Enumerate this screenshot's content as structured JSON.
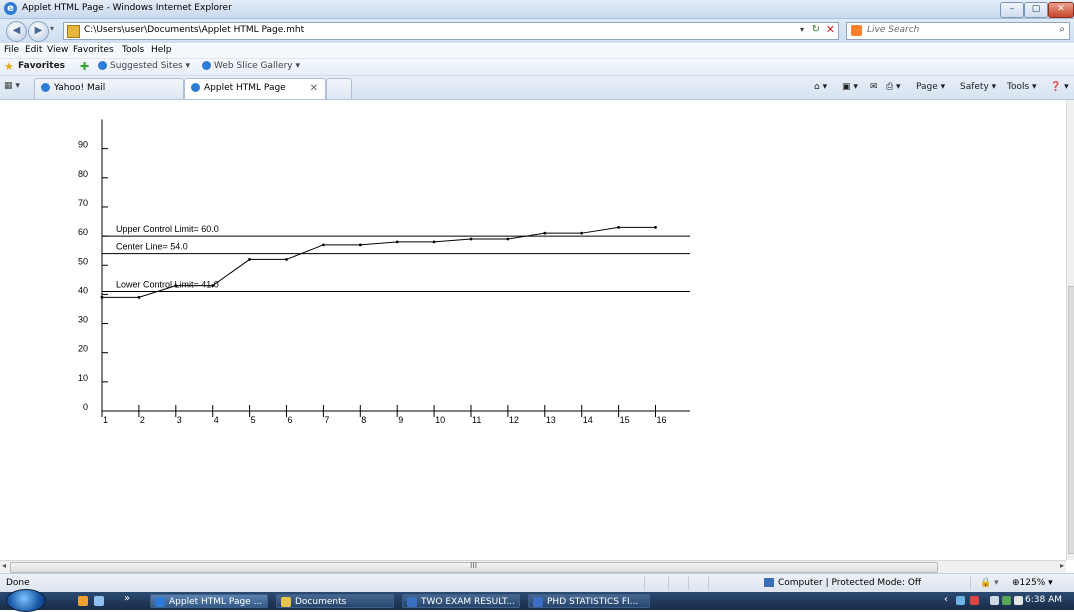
{
  "window": {
    "title": "Applet HTML Page - Windows Internet Explorer",
    "controls": {
      "minimize": "–",
      "maximize": "▢",
      "close": "✕"
    }
  },
  "address_bar": {
    "url": "C:\\Users\\user\\Documents\\Applet HTML Page.mht",
    "back_icon": "◀",
    "forward_icon": "▶",
    "refresh_icon": "↻",
    "stop_icon": "✕",
    "dropdown_icon": "▾",
    "search_placeholder": "Live Search",
    "search_icon": "⌕"
  },
  "menu": [
    "File",
    "Edit",
    "View",
    "Favorites",
    "Tools",
    "Help"
  ],
  "favorites_bar": {
    "favorites_label": "Favorites",
    "items": [
      "Suggested Sites ▾",
      "Web Slice Gallery ▾"
    ]
  },
  "tabs": {
    "quick_tabs": "▦ ▾",
    "items": [
      {
        "label": "Yahoo! Mail"
      },
      {
        "label": "Applet HTML Page",
        "close": "✕"
      }
    ]
  },
  "command_bar": [
    "⌂ ▾",
    "▣ ▾",
    "✉",
    "⎙ ▾",
    "Page ▾",
    "Safety ▾",
    "Tools ▾",
    "❓ ▾"
  ],
  "chart_data": {
    "type": "line",
    "x": [
      1,
      2,
      3,
      4,
      5,
      6,
      7,
      8,
      9,
      10,
      11,
      12,
      13,
      14,
      15,
      16
    ],
    "series": [
      {
        "values": [
          39,
          39,
          43,
          43,
          52,
          52,
          57,
          57,
          58,
          58,
          59,
          59,
          61,
          61,
          63,
          63
        ]
      }
    ],
    "x_ticks": [
      "1",
      "2",
      "3",
      "4",
      "5",
      "6",
      "7",
      "8",
      "9",
      "10",
      "11",
      "12",
      "13",
      "14",
      "15",
      "16"
    ],
    "y_ticks": [
      "0",
      "10",
      "20",
      "30",
      "40",
      "50",
      "60",
      "70",
      "80",
      "90"
    ],
    "ylim": [
      0,
      100
    ],
    "xlim": [
      1,
      17
    ],
    "control_lines": [
      {
        "label": "Upper Control Limit= 60.0",
        "value": 60.0
      },
      {
        "label": "Center Line= 54.0",
        "value": 54.0
      },
      {
        "label": "Lower Control Limit= 41.0",
        "value": 41.0
      }
    ],
    "title": "",
    "xlabel": "",
    "ylabel": "",
    "grid": false
  },
  "scrollbar": {
    "left": "◂",
    "right": "▸",
    "grip": "III"
  },
  "status_bar": {
    "text": "Done",
    "zone": "Computer | Protected Mode: Off",
    "zoom": "⊕125% ▾",
    "protect_icon": "🔒 ▾"
  },
  "taskbar": {
    "quick_launch_more": "»",
    "buttons": [
      "Applet HTML Page ...",
      "Documents",
      "TWO EXAM RESULT...",
      "PHD STATISTICS FI..."
    ],
    "tray_chevron": "‹",
    "clock": "6:38 AM"
  },
  "colors": {
    "chart_line": "#000000",
    "taskbar": "#1f3a5f",
    "ie_blue": "#2e7bd6"
  }
}
